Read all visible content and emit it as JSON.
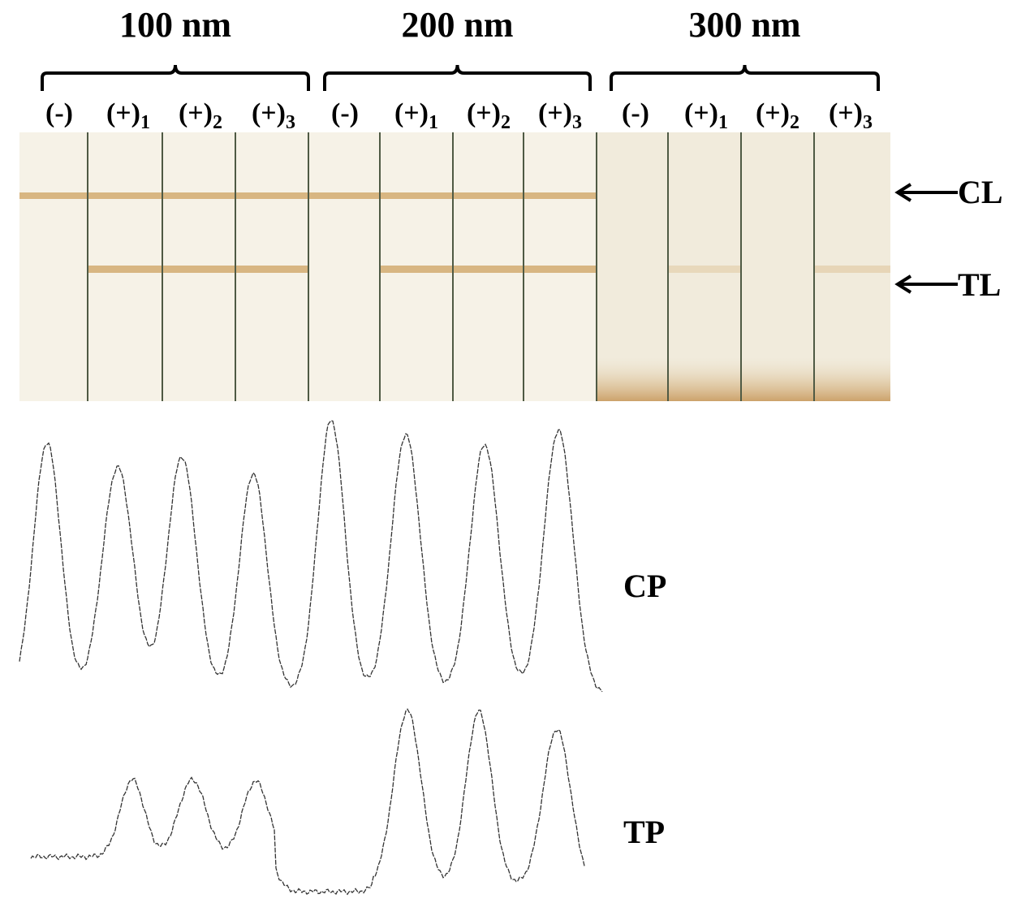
{
  "groups": [
    {
      "label": "100 nm",
      "lanes": [
        {
          "label": "(-)"
        },
        {
          "label": "(+)",
          "sub": "1"
        },
        {
          "label": "(+)",
          "sub": "2"
        },
        {
          "label": "(+)",
          "sub": "3"
        }
      ]
    },
    {
      "label": "200 nm",
      "lanes": [
        {
          "label": "(-)"
        },
        {
          "label": "(+)",
          "sub": "1"
        },
        {
          "label": "(+)",
          "sub": "2"
        },
        {
          "label": "(+)",
          "sub": "3"
        }
      ]
    },
    {
      "label": "300 nm",
      "lanes": [
        {
          "label": "(-)"
        },
        {
          "label": "(+)",
          "sub": "1"
        },
        {
          "label": "(+)",
          "sub": "2"
        },
        {
          "label": "(+)",
          "sub": "3"
        }
      ]
    }
  ],
  "line_labels": {
    "control": "CL",
    "test": "TL"
  },
  "profile_labels": {
    "control": "CP",
    "test": "TP"
  }
}
